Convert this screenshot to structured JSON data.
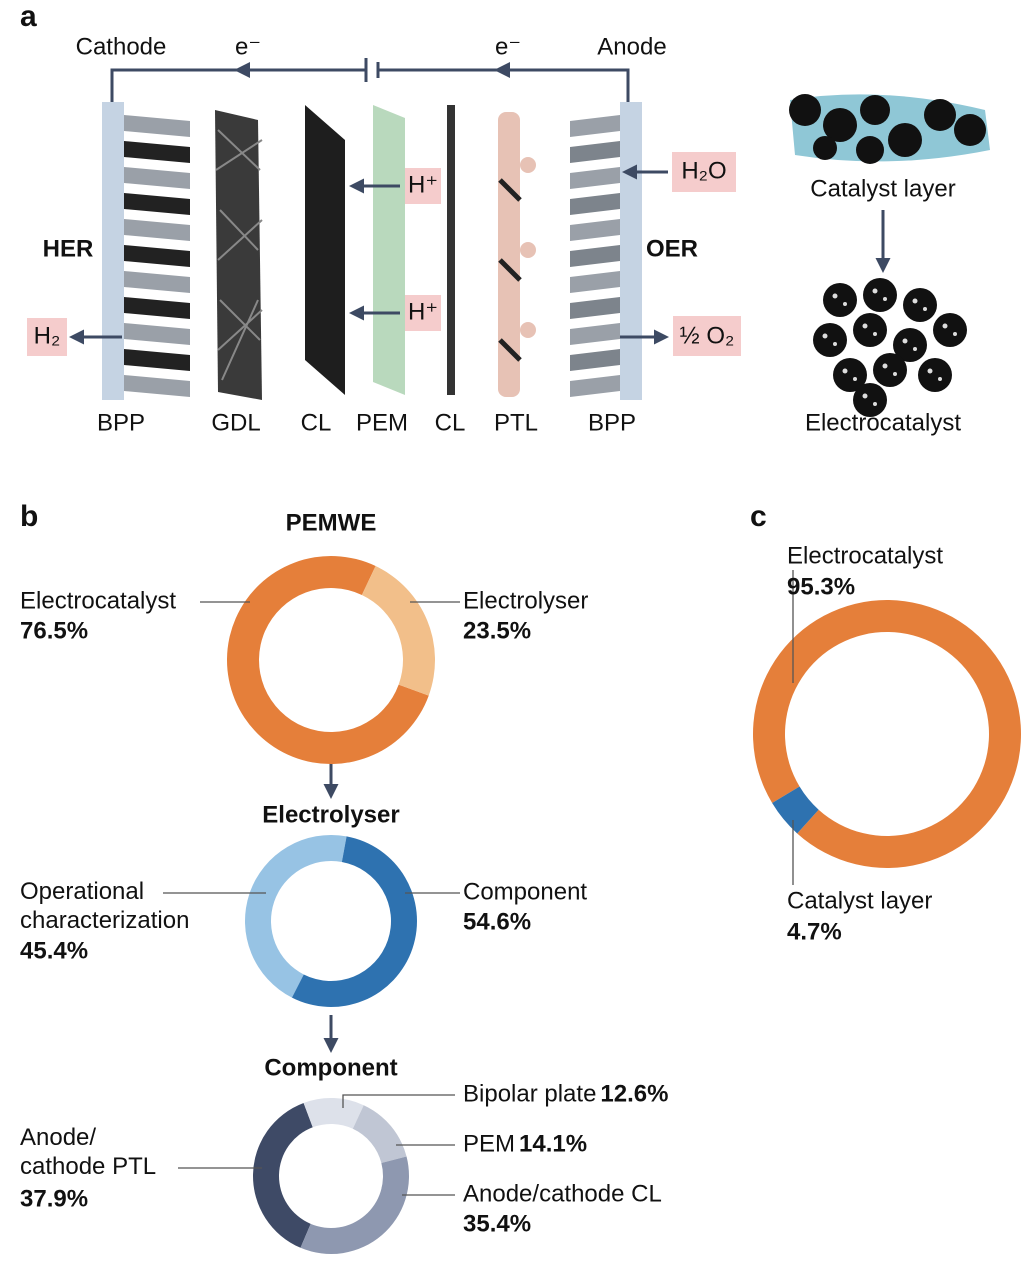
{
  "figure": {
    "panel_a": {
      "label": "a",
      "cathode": "Cathode",
      "anode": "Anode",
      "electron_left": "e⁻",
      "electron_right": "e⁻",
      "her": "HER",
      "oer": "OER",
      "h2": "H₂",
      "hplus_top": "H⁺",
      "hplus_bottom": "H⁺",
      "h2o": "H₂O",
      "o2": "½ O₂",
      "layers": [
        "BPP",
        "GDL",
        "CL",
        "PEM",
        "CL",
        "PTL",
        "BPP"
      ],
      "catalyst_layer": "Catalyst layer",
      "electrocatalyst": "Electrocatalyst"
    },
    "panel_b_label": "b",
    "panel_c_label": "c"
  },
  "chart_data": [
    {
      "type": "donut",
      "title": "PEMWE",
      "categories": [
        "Electrocatalyst",
        "Electrolyser"
      ],
      "values": [
        76.5,
        23.5
      ],
      "value_labels": [
        "76.5%",
        "23.5%"
      ],
      "colors": [
        "#e57f3a",
        "#f2bf8a"
      ]
    },
    {
      "type": "donut",
      "title": "Electrolyser",
      "categories": [
        "Operational\ncharacterization",
        "Component"
      ],
      "values": [
        45.4,
        54.6
      ],
      "value_labels": [
        "45.4%",
        "54.6%"
      ],
      "colors": [
        "#97c3e4",
        "#2e72b0"
      ]
    },
    {
      "type": "donut",
      "title": "Component",
      "categories": [
        "Anode/\ncathode PTL",
        "Bipolar plate",
        "PEM",
        "Anode/cathode CL"
      ],
      "values": [
        37.9,
        12.6,
        14.1,
        35.4
      ],
      "value_labels": [
        "37.9%",
        "12.6%",
        "14.1%",
        "35.4%"
      ],
      "colors": [
        "#3e4a66",
        "#dde1ea",
        "#c0c6d4",
        "#8e98b0"
      ]
    },
    {
      "type": "donut",
      "categories": [
        "Electrocatalyst",
        "Catalyst layer"
      ],
      "values": [
        95.3,
        4.7
      ],
      "value_labels": [
        "95.3%",
        "4.7%"
      ],
      "colors": [
        "#e57f3a",
        "#2e72b0"
      ]
    }
  ]
}
